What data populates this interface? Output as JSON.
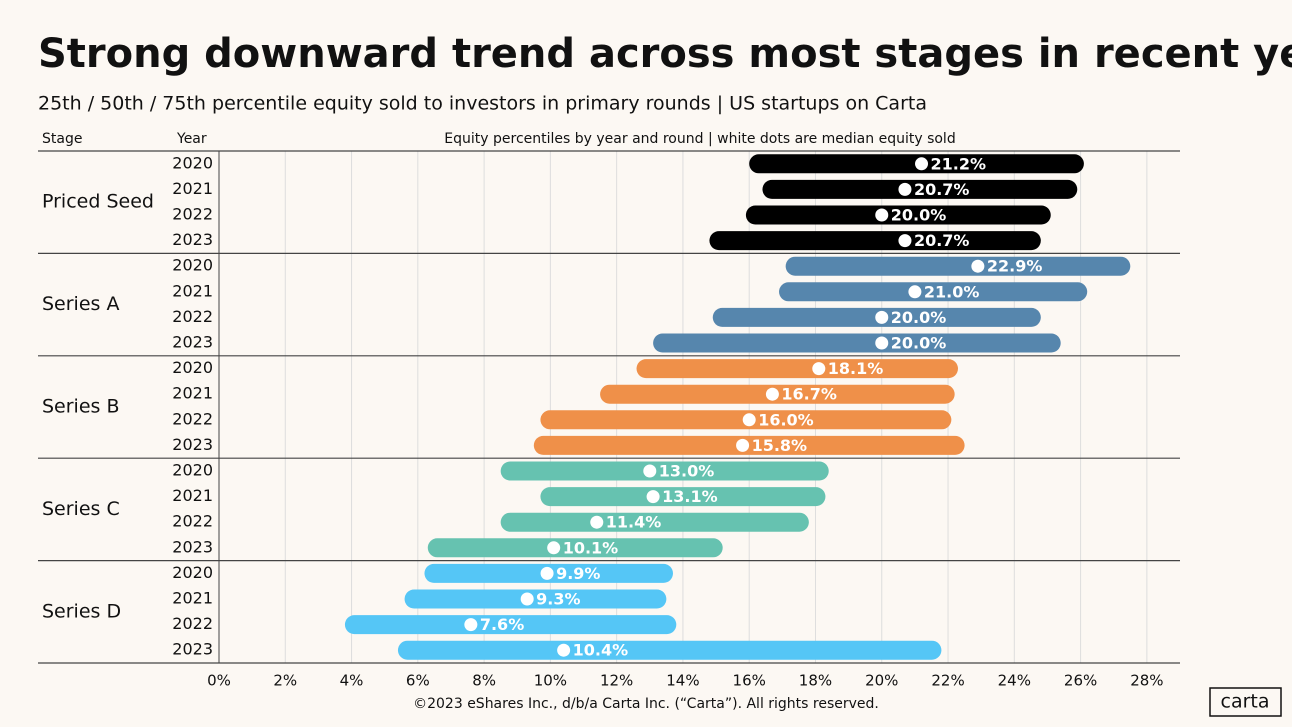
{
  "chart_data": {
    "type": "range",
    "title": "Strong downward trend across most stages in recent years",
    "subtitle": "25th / 50th / 75th percentile equity sold to investors in primary rounds | US startups on Carta",
    "stage_header": "Stage",
    "year_header": "Year",
    "axis_title": "Equity percentiles by year and round | white dots are median equity sold",
    "years": [
      "2020",
      "2021",
      "2022",
      "2023"
    ],
    "xlim": [
      0,
      29
    ],
    "xticks": [
      {
        "value": 0,
        "label": "0%"
      },
      {
        "value": 2,
        "label": "2%"
      },
      {
        "value": 4,
        "label": "4%"
      },
      {
        "value": 6,
        "label": "6%"
      },
      {
        "value": 8,
        "label": "8%"
      },
      {
        "value": 10,
        "label": "10%"
      },
      {
        "value": 12,
        "label": "12%"
      },
      {
        "value": 14,
        "label": "14%"
      },
      {
        "value": 16,
        "label": "16%"
      },
      {
        "value": 18,
        "label": "18%"
      },
      {
        "value": 20,
        "label": "20%"
      },
      {
        "value": 22,
        "label": "22%"
      },
      {
        "value": 24,
        "label": "24%"
      },
      {
        "value": 26,
        "label": "26%"
      },
      {
        "value": 28,
        "label": "28%"
      }
    ],
    "grid": true,
    "series": [
      {
        "name": "Priced Seed",
        "color": "#000000",
        "low": [
          16.0,
          16.4,
          15.9,
          14.8
        ],
        "median": [
          21.2,
          20.7,
          20.0,
          20.7
        ],
        "high": [
          26.1,
          25.9,
          25.1,
          24.8
        ],
        "value_labels": [
          "21.2%",
          "20.7%",
          "20.0%",
          "20.7%"
        ]
      },
      {
        "name": "Series A",
        "color": "#5686ad",
        "low": [
          17.1,
          16.9,
          14.9,
          13.1
        ],
        "median": [
          22.9,
          21.0,
          20.0,
          20.0
        ],
        "high": [
          27.5,
          26.2,
          24.8,
          25.4
        ],
        "value_labels": [
          "22.9%",
          "21.0%",
          "20.0%",
          "20.0%"
        ]
      },
      {
        "name": "Series B",
        "color": "#ef9049",
        "low": [
          12.6,
          11.5,
          9.7,
          9.5
        ],
        "median": [
          18.1,
          16.7,
          16.0,
          15.8
        ],
        "high": [
          22.3,
          22.2,
          22.1,
          22.5
        ],
        "value_labels": [
          "18.1%",
          "16.7%",
          "16.0%",
          "15.8%"
        ]
      },
      {
        "name": "Series C",
        "color": "#66c2b0",
        "low": [
          8.5,
          9.7,
          8.5,
          6.3
        ],
        "median": [
          13.0,
          13.1,
          11.4,
          10.1
        ],
        "high": [
          18.4,
          18.3,
          17.8,
          15.2
        ],
        "value_labels": [
          "13.0%",
          "13.1%",
          "11.4%",
          "10.1%"
        ]
      },
      {
        "name": "Series D",
        "color": "#55c6f6",
        "low": [
          6.2,
          5.6,
          3.8,
          5.4
        ],
        "median": [
          9.9,
          9.3,
          7.6,
          10.4
        ],
        "high": [
          13.7,
          13.5,
          13.8,
          21.8
        ],
        "value_labels": [
          "9.9%",
          "9.3%",
          "7.6%",
          "10.4%"
        ]
      }
    ],
    "footer": "©2023 eShares Inc., d/b/a Carta Inc. (“Carta”). All rights reserved.",
    "logo": "carta"
  }
}
